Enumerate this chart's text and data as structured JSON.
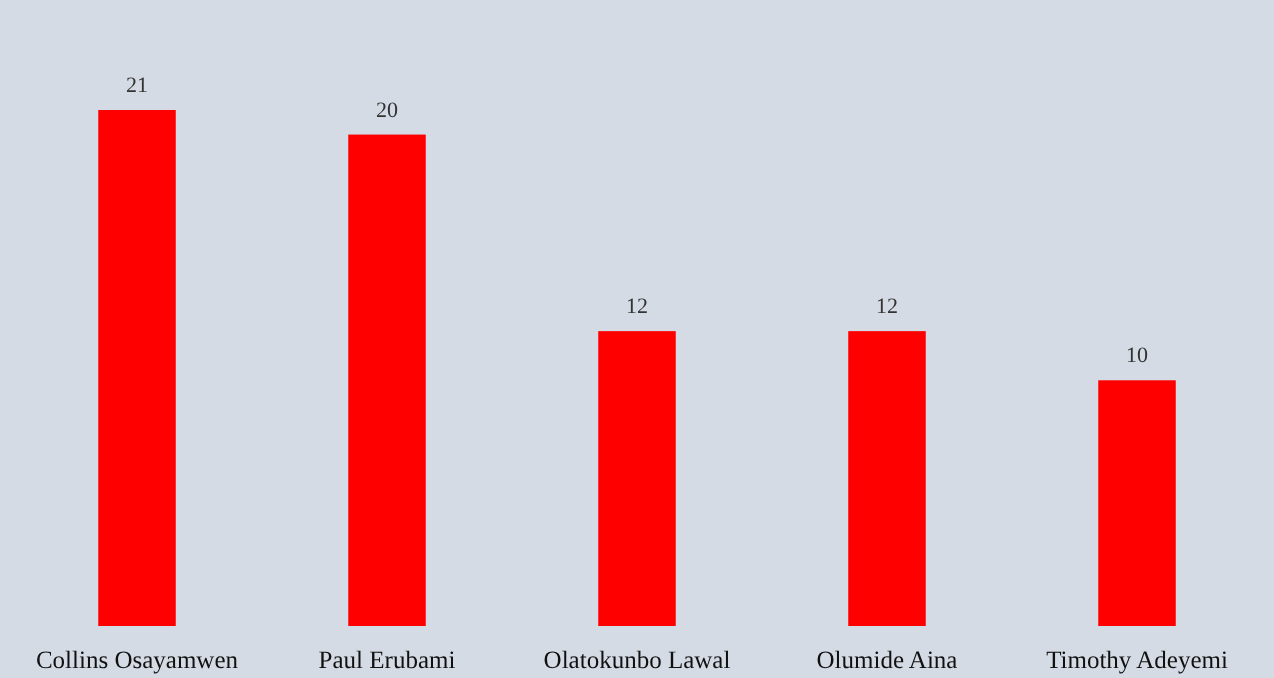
{
  "chart_data": {
    "type": "bar",
    "categories": [
      "Collins Osayamwen",
      "Paul Erubami",
      "Olatokunbo Lawal",
      "Olumide Aina",
      "Timothy Adeyemi"
    ],
    "values": [
      21,
      20,
      12,
      12,
      10
    ],
    "color": "#ff0000",
    "data_labels": true
  }
}
